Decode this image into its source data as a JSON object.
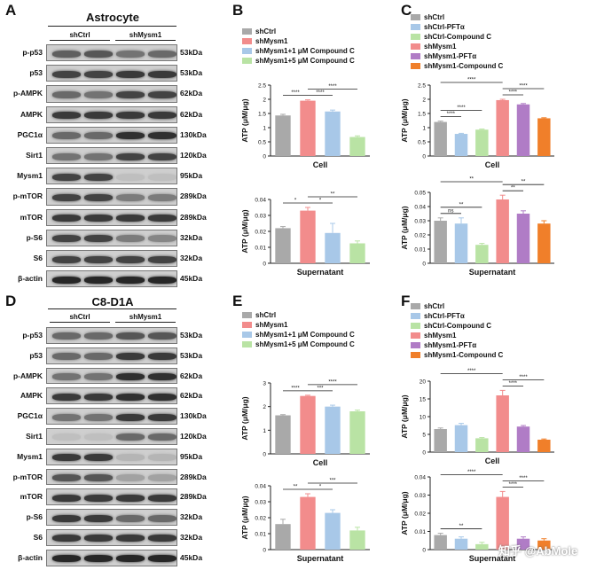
{
  "panels": {
    "A": {
      "letter": "A",
      "title": "Astrocyte",
      "groups": [
        "shCtrl",
        "shMysm1"
      ],
      "rows": [
        {
          "label": "p-p53",
          "kda": "53kDa",
          "i": [
            0.55,
            0.6,
            0.45,
            0.5
          ]
        },
        {
          "label": "p53",
          "kda": "53kDa",
          "i": [
            0.7,
            0.7,
            0.75,
            0.75
          ]
        },
        {
          "label": "p-AMPK",
          "kda": "62kDa",
          "i": [
            0.5,
            0.45,
            0.7,
            0.7
          ]
        },
        {
          "label": "AMPK",
          "kda": "62kDa",
          "i": [
            0.75,
            0.75,
            0.75,
            0.75
          ]
        },
        {
          "label": "PGC1α",
          "kda": "130kDa",
          "i": [
            0.5,
            0.5,
            0.8,
            0.8
          ]
        },
        {
          "label": "Sirt1",
          "kda": "120kDa",
          "i": [
            0.45,
            0.45,
            0.7,
            0.7
          ]
        },
        {
          "label": "Mysm1",
          "kda": "95kDa",
          "i": [
            0.7,
            0.7,
            0.05,
            0.05
          ]
        },
        {
          "label": "p-mTOR",
          "kda": "289kDa",
          "i": [
            0.7,
            0.7,
            0.4,
            0.4
          ]
        },
        {
          "label": "mTOR",
          "kda": "289kDa",
          "i": [
            0.75,
            0.75,
            0.75,
            0.75
          ]
        },
        {
          "label": "p-S6",
          "kda": "32kDa",
          "i": [
            0.7,
            0.7,
            0.4,
            0.35
          ]
        },
        {
          "label": "S6",
          "kda": "32kDa",
          "i": [
            0.7,
            0.7,
            0.7,
            0.7
          ]
        },
        {
          "label": "β-actin",
          "kda": "45kDa",
          "i": [
            0.85,
            0.85,
            0.85,
            0.85
          ]
        }
      ]
    },
    "D": {
      "letter": "D",
      "title": "C8-D1A",
      "groups": [
        "shCtrl",
        "shMysm1"
      ],
      "rows": [
        {
          "label": "p-p53",
          "kda": "53kDa",
          "i": [
            0.5,
            0.5,
            0.6,
            0.6
          ]
        },
        {
          "label": "p53",
          "kda": "53kDa",
          "i": [
            0.5,
            0.5,
            0.75,
            0.75
          ]
        },
        {
          "label": "p-AMPK",
          "kda": "62kDa",
          "i": [
            0.45,
            0.45,
            0.8,
            0.8
          ]
        },
        {
          "label": "AMPK",
          "kda": "62kDa",
          "i": [
            0.75,
            0.75,
            0.8,
            0.8
          ]
        },
        {
          "label": "PGC1α",
          "kda": "130kDa",
          "i": [
            0.45,
            0.45,
            0.75,
            0.75
          ]
        },
        {
          "label": "Sirt1",
          "kda": "120kDa",
          "i": [
            0.05,
            0.05,
            0.5,
            0.5
          ]
        },
        {
          "label": "Mysm1",
          "kda": "95kDa",
          "i": [
            0.75,
            0.75,
            0.1,
            0.1
          ]
        },
        {
          "label": "p-mTOR",
          "kda": "289kDa",
          "i": [
            0.6,
            0.6,
            0.2,
            0.2
          ]
        },
        {
          "label": "mTOR",
          "kda": "289kDa",
          "i": [
            0.75,
            0.75,
            0.75,
            0.75
          ]
        },
        {
          "label": "p-S6",
          "kda": "32kDa",
          "i": [
            0.75,
            0.75,
            0.5,
            0.5
          ]
        },
        {
          "label": "S6",
          "kda": "32kDa",
          "i": [
            0.75,
            0.75,
            0.75,
            0.75
          ]
        },
        {
          "label": "β-actin",
          "kda": "45kDa",
          "i": [
            0.85,
            0.85,
            0.85,
            0.85
          ]
        }
      ]
    },
    "B": {
      "letter": "B",
      "legend": [
        "shCtrl",
        "shMysm1",
        "shMysm1+1 μM Compound C",
        "shMysm1+5 μM Compound C"
      ]
    },
    "C": {
      "letter": "C",
      "legend": [
        "shCtrl",
        "shCtrl-PFTα",
        "shCtrl-Compound C",
        "shMysm1",
        "shMysm1-PFTα",
        "shMysm1-Compound C"
      ]
    },
    "E": {
      "letter": "E",
      "legend": [
        "shCtrl",
        "shMysm1",
        "shMysm1+1 μM Compound C",
        "shMysm1+5 μM Compound C"
      ]
    },
    "F": {
      "letter": "F",
      "legend": [
        "shCtrl",
        "shCtrl-PFTα",
        "shCtrl-Compound C",
        "shMysm1",
        "shMysm1-PFTα",
        "shMysm1-Compound C"
      ]
    }
  },
  "watermark": "知乎 @AbMole",
  "colors": {
    "grey": "#a9a9a9",
    "red": "#f28c8c",
    "blue": "#a8c8e8",
    "green": "#b9e3a4",
    "purple": "#b07cc6",
    "orange": "#f07f2a"
  },
  "chart_data": [
    {
      "id": "B-cell",
      "type": "bar",
      "xlabel": "Cell",
      "ylabel": "ATP (μM/μg)",
      "ylim": [
        0,
        2.5
      ],
      "yticks": [
        0,
        0.5,
        1.0,
        1.5,
        2.0,
        2.5
      ],
      "categories": [
        "shCtrl",
        "shMysm1",
        "shMysm1+1 μM Compound C",
        "shMysm1+5 μM Compound C"
      ],
      "values": [
        1.43,
        1.95,
        1.57,
        0.67
      ],
      "errors": [
        0.04,
        0.03,
        0.05,
        0.04
      ],
      "colors": [
        "grey",
        "red",
        "blue",
        "green"
      ],
      "sig": [
        {
          "a": 0,
          "b": 1,
          "t": "****",
          "l": 0
        },
        {
          "a": 1,
          "b": 2,
          "t": "****",
          "l": 0
        },
        {
          "a": 1,
          "b": 3,
          "t": "****",
          "l": 1
        }
      ]
    },
    {
      "id": "B-sup",
      "type": "bar",
      "xlabel": "Supernatant",
      "ylabel": "ATP (μM/μg)",
      "ylim": [
        0,
        0.04
      ],
      "yticks": [
        0,
        0.01,
        0.02,
        0.03,
        0.04
      ],
      "categories": [
        "shCtrl",
        "shMysm1",
        "shMysm1+1 μM Compound C",
        "shMysm1+5 μM Compound C"
      ],
      "values": [
        0.022,
        0.033,
        0.019,
        0.0125
      ],
      "errors": [
        0.001,
        0.002,
        0.006,
        0.0015
      ],
      "colors": [
        "grey",
        "red",
        "blue",
        "green"
      ],
      "sig": [
        {
          "a": 0,
          "b": 1,
          "t": "*",
          "l": 0
        },
        {
          "a": 1,
          "b": 2,
          "t": "*",
          "l": 0
        },
        {
          "a": 1,
          "b": 3,
          "t": "**",
          "l": 1
        }
      ]
    },
    {
      "id": "C-cell",
      "type": "bar",
      "xlabel": "Cell",
      "ylabel": "ATP (μM/μg)",
      "ylim": [
        0,
        2.5
      ],
      "yticks": [
        0,
        0.5,
        1.0,
        1.5,
        2.0,
        2.5
      ],
      "categories": [
        "shCtrl",
        "shCtrl-PFTα",
        "shCtrl-Compound C",
        "shMysm1",
        "shMysm1-PFTα",
        "shMysm1-Compound C"
      ],
      "values": [
        1.2,
        0.78,
        0.93,
        1.97,
        1.82,
        1.33
      ],
      "errors": [
        0.03,
        0.02,
        0.02,
        0.03,
        0.03,
        0.02
      ],
      "colors": [
        "grey",
        "blue",
        "green",
        "red",
        "purple",
        "orange"
      ],
      "sig": [
        {
          "a": 0,
          "b": 1,
          "t": "****",
          "l": 0
        },
        {
          "a": 0,
          "b": 2,
          "t": "****",
          "l": 1
        },
        {
          "a": 0,
          "b": 3,
          "t": "****",
          "l": 2
        },
        {
          "a": 3,
          "b": 4,
          "t": "****",
          "l": 0
        },
        {
          "a": 3,
          "b": 5,
          "t": "****",
          "l": 1
        }
      ]
    },
    {
      "id": "C-sup",
      "type": "bar",
      "xlabel": "Supernatant",
      "ylabel": "ATP (μM/μg)",
      "ylim": [
        0,
        0.05
      ],
      "yticks": [
        0,
        0.01,
        0.02,
        0.03,
        0.04,
        0.05
      ],
      "categories": [
        "shCtrl",
        "shCtrl-PFTα",
        "shCtrl-Compound C",
        "shMysm1",
        "shMysm1-PFTα",
        "shMysm1-Compound C"
      ],
      "values": [
        0.03,
        0.028,
        0.013,
        0.045,
        0.035,
        0.028
      ],
      "errors": [
        0.002,
        0.004,
        0.001,
        0.003,
        0.002,
        0.002
      ],
      "colors": [
        "grey",
        "blue",
        "green",
        "red",
        "purple",
        "orange"
      ],
      "sig": [
        {
          "a": 0,
          "b": 1,
          "t": "ns",
          "l": 0
        },
        {
          "a": 0,
          "b": 2,
          "t": "**",
          "l": 1
        },
        {
          "a": 0,
          "b": 3,
          "t": "**",
          "l": 2
        },
        {
          "a": 3,
          "b": 4,
          "t": "**",
          "l": 0
        },
        {
          "a": 3,
          "b": 5,
          "t": "**",
          "l": 1
        }
      ]
    },
    {
      "id": "E-cell",
      "type": "bar",
      "xlabel": "Cell",
      "ylabel": "ATP (μM/μg)",
      "ylim": [
        0,
        3
      ],
      "yticks": [
        0,
        1,
        2,
        3
      ],
      "categories": [
        "shCtrl",
        "shMysm1",
        "shMysm1+1 μM Compound C",
        "shMysm1+5 μM Compound C"
      ],
      "values": [
        1.63,
        2.45,
        2.0,
        1.8
      ],
      "errors": [
        0.03,
        0.03,
        0.06,
        0.05
      ],
      "colors": [
        "grey",
        "red",
        "blue",
        "green"
      ],
      "sig": [
        {
          "a": 0,
          "b": 1,
          "t": "****",
          "l": 0
        },
        {
          "a": 1,
          "b": 2,
          "t": "***",
          "l": 0
        },
        {
          "a": 1,
          "b": 3,
          "t": "****",
          "l": 1
        }
      ]
    },
    {
      "id": "E-sup",
      "type": "bar",
      "xlabel": "Supernatant",
      "ylabel": "ATP (μM/μg)",
      "ylim": [
        0,
        0.04
      ],
      "yticks": [
        0,
        0.01,
        0.02,
        0.03,
        0.04
      ],
      "categories": [
        "shCtrl",
        "shMysm1",
        "shMysm1+1 μM Compound C",
        "shMysm1+5 μM Compound C"
      ],
      "values": [
        0.016,
        0.033,
        0.023,
        0.012
      ],
      "errors": [
        0.003,
        0.002,
        0.002,
        0.002
      ],
      "colors": [
        "grey",
        "red",
        "blue",
        "green"
      ],
      "sig": [
        {
          "a": 0,
          "b": 1,
          "t": "**",
          "l": 0
        },
        {
          "a": 1,
          "b": 2,
          "t": "*",
          "l": 0
        },
        {
          "a": 1,
          "b": 3,
          "t": "***",
          "l": 1
        }
      ]
    },
    {
      "id": "F-cell",
      "type": "bar",
      "xlabel": "Cell",
      "ylabel": "ATP (μM/μg)",
      "ylim": [
        0,
        20
      ],
      "yticks": [
        0,
        5,
        10,
        15,
        20
      ],
      "categories": [
        "shCtrl",
        "shCtrl-PFTα",
        "shCtrl-Compound C",
        "shMysm1",
        "shMysm1-PFTα",
        "shMysm1-Compound C"
      ],
      "values": [
        6.5,
        7.6,
        3.9,
        16.0,
        7.2,
        3.5
      ],
      "errors": [
        0.3,
        0.5,
        0.2,
        1.4,
        0.3,
        0.2
      ],
      "colors": [
        "grey",
        "blue",
        "green",
        "red",
        "purple",
        "orange"
      ],
      "sig": [
        {
          "a": 0,
          "b": 3,
          "t": "****",
          "l": 2
        },
        {
          "a": 3,
          "b": 4,
          "t": "****",
          "l": 0
        },
        {
          "a": 3,
          "b": 5,
          "t": "****",
          "l": 1
        }
      ]
    },
    {
      "id": "F-sup",
      "type": "bar",
      "xlabel": "Supernatant",
      "ylabel": "ATP (μM/μg)",
      "ylim": [
        0,
        0.04
      ],
      "yticks": [
        0,
        0.01,
        0.02,
        0.03,
        0.04
      ],
      "categories": [
        "shCtrl",
        "shCtrl-PFTα",
        "shCtrl-Compound C",
        "shMysm1",
        "shMysm1-PFTα",
        "shMysm1-Compound C"
      ],
      "values": [
        0.008,
        0.006,
        0.003,
        0.029,
        0.006,
        0.005
      ],
      "errors": [
        0.001,
        0.001,
        0.001,
        0.003,
        0.001,
        0.001
      ],
      "colors": [
        "grey",
        "blue",
        "green",
        "red",
        "purple",
        "orange"
      ],
      "sig": [
        {
          "a": 0,
          "b": 2,
          "t": "**",
          "l": 0
        },
        {
          "a": 0,
          "b": 3,
          "t": "****",
          "l": 2
        },
        {
          "a": 3,
          "b": 4,
          "t": "****",
          "l": 0
        },
        {
          "a": 3,
          "b": 5,
          "t": "****",
          "l": 1
        }
      ]
    }
  ]
}
